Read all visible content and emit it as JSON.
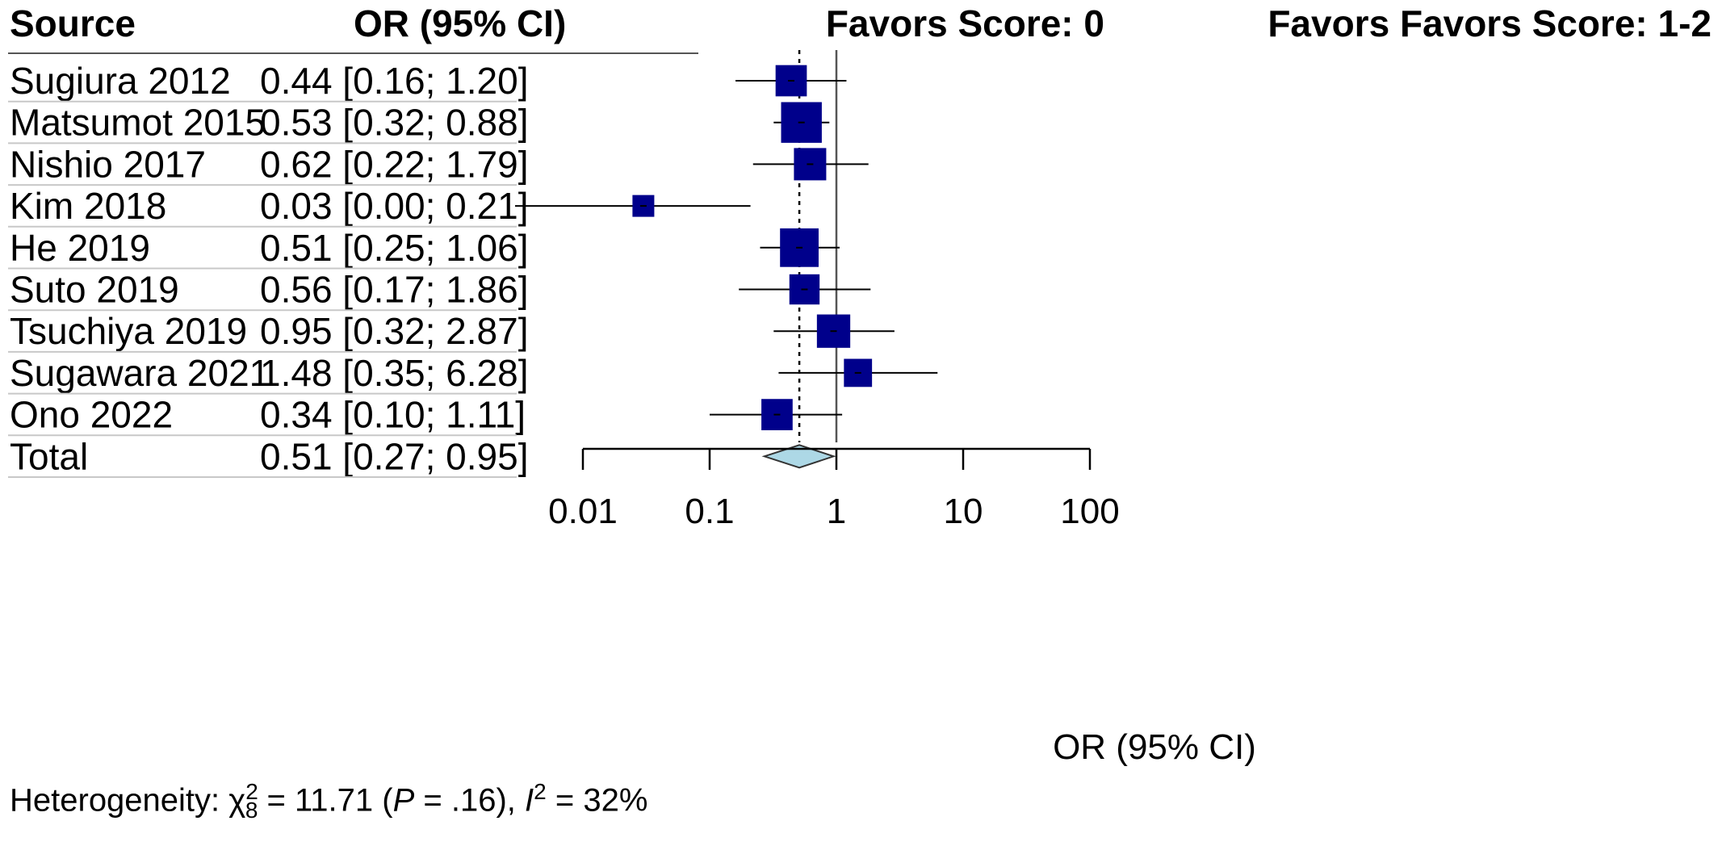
{
  "table": {
    "headers": {
      "source": "Source",
      "or_ci": "OR (95% CI)"
    },
    "favors_left": "Favors Score: 0",
    "favors_right": "Favors Favors Score: 1-2"
  },
  "chart_data": {
    "type": "forest",
    "scale": "log",
    "xlim": [
      0.01,
      100
    ],
    "xticks": [
      0.01,
      0.1,
      1,
      10,
      100
    ],
    "xtick_labels": [
      "0.01",
      "0.1",
      "1",
      "10",
      "100"
    ],
    "xlabel": "OR (95% CI)",
    "reference_line": 1,
    "pooled_dotted_line": 0.51,
    "colors": {
      "box": "#00008B",
      "diamond": "#ADD8E6"
    },
    "studies": [
      {
        "source": "Sugiura 2012",
        "or": 0.44,
        "lo": 0.16,
        "hi": 1.2,
        "label": "0.44 [0.16; 1.20]",
        "weight": 9.5
      },
      {
        "source": "Matsumot 2015",
        "or": 0.53,
        "lo": 0.32,
        "hi": 0.88,
        "label": "0.53 [0.32; 0.88]",
        "weight": 14.0
      },
      {
        "source": "Nishio 2017",
        "or": 0.62,
        "lo": 0.22,
        "hi": 1.79,
        "label": "0.62 [0.22; 1.79]",
        "weight": 10.0
      },
      {
        "source": "Kim 2018",
        "or": 0.03,
        "lo": 0.0,
        "hi": 0.21,
        "label": "0.03 [0.00; 0.21]",
        "weight": 5.0
      },
      {
        "source": "He 2019",
        "or": 0.51,
        "lo": 0.25,
        "hi": 1.06,
        "label": "0.51 [0.25; 1.06]",
        "weight": 13.0
      },
      {
        "source": "Suto 2019",
        "or": 0.56,
        "lo": 0.17,
        "hi": 1.86,
        "label": "0.56 [0.17; 1.86]",
        "weight": 9.0
      },
      {
        "source": "Tsuchiya 2019",
        "or": 0.95,
        "lo": 0.32,
        "hi": 2.87,
        "label": "0.95 [0.32; 2.87]",
        "weight": 10.5
      },
      {
        "source": "Sugawara 2021",
        "or": 1.48,
        "lo": 0.35,
        "hi": 6.28,
        "label": "1.48 [0.35; 6.28]",
        "weight": 8.0
      },
      {
        "source": "Ono 2022",
        "or": 0.34,
        "lo": 0.1,
        "hi": 1.11,
        "label": "0.34 [0.10; 1.11]",
        "weight": 9.5
      }
    ],
    "total": {
      "source": "Total",
      "or": 0.51,
      "lo": 0.27,
      "hi": 0.95,
      "label": "0.51 [0.27; 0.95]"
    }
  },
  "heterogeneity": {
    "prefix": "Heterogeneity: ",
    "chi_symbol": "χ",
    "chi_sup": "2",
    "chi_sub": "8",
    "chi_value": " = 11.71 (",
    "p_symbol": "P",
    "p_value": " = .16), ",
    "i_symbol": "I",
    "i_sup": "2",
    "i_value": " = 32%"
  }
}
